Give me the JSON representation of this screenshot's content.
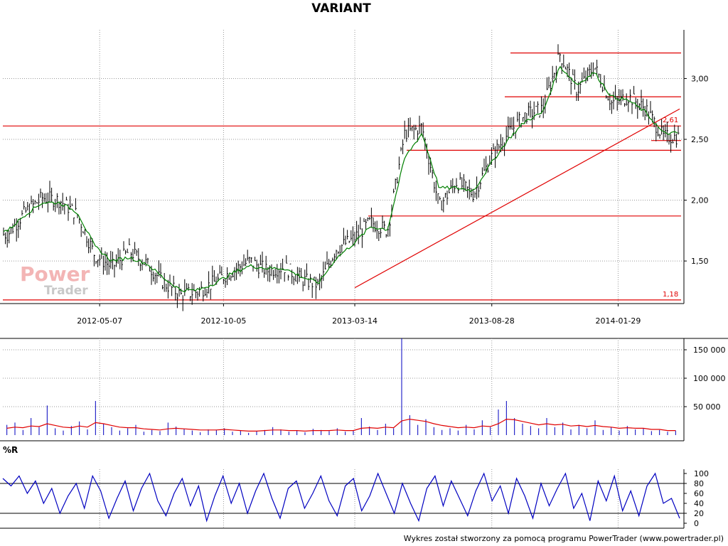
{
  "title": "VARIANT",
  "footer": "Wykres został stworzony za pomocą programu PowerTrader (www.powertrader.pl)",
  "watermark": {
    "line1": "Power",
    "line2": "Trader"
  },
  "colors": {
    "price": "#000000",
    "sma": "#008000",
    "lines": "#e00000",
    "volume": "#0000c0",
    "volume_ma": "#e00000",
    "williams": "#0000c0",
    "grid": "#999999"
  },
  "chart_data": [
    {
      "type": "ohlc",
      "panel": "price",
      "title": "VARIANT",
      "x_tick_labels": [
        "2012-05-07",
        "2012-10-05",
        "2013-03-14",
        "2013-08-28",
        "2014-01-29"
      ],
      "y_tick_labels": [
        "1,50",
        "2,00",
        "2,50",
        "3,00"
      ],
      "ylim": [
        1.15,
        3.4
      ],
      "grid": true,
      "annotations": [
        "2,61",
        "1,18"
      ],
      "series": [
        {
          "name": "Close",
          "dates": [
            "2012-01-16",
            "2012-02-06",
            "2012-02-27",
            "2012-03-19",
            "2012-04-10",
            "2012-05-01",
            "2012-05-22",
            "2012-06-12",
            "2012-07-03",
            "2012-07-24",
            "2012-08-14",
            "2012-09-04",
            "2012-09-25",
            "2012-10-16",
            "2012-11-06",
            "2012-11-27",
            "2012-12-18",
            "2013-01-08",
            "2013-01-29",
            "2013-02-19",
            "2013-03-12",
            "2013-04-02",
            "2013-04-23",
            "2013-05-14",
            "2013-06-04",
            "2013-06-25",
            "2013-07-16",
            "2013-08-06",
            "2013-08-27",
            "2013-09-17",
            "2013-10-08",
            "2013-10-29",
            "2013-11-19",
            "2013-12-10",
            "2013-12-31",
            "2014-01-21",
            "2014-02-11",
            "2014-03-04",
            "2014-03-25"
          ],
          "values": [
            1.72,
            1.9,
            2.02,
            2.0,
            1.88,
            1.55,
            1.45,
            1.58,
            1.48,
            1.32,
            1.22,
            1.25,
            1.33,
            1.42,
            1.5,
            1.42,
            1.45,
            1.35,
            1.3,
            1.6,
            1.68,
            1.82,
            1.75,
            2.55,
            2.6,
            1.95,
            2.15,
            2.05,
            2.35,
            2.55,
            2.7,
            2.75,
            3.2,
            2.9,
            3.1,
            2.8,
            2.85,
            2.75,
            2.52
          ]
        },
        {
          "name": "SMA",
          "values": [
            1.75,
            1.88,
            1.98,
            1.98,
            1.9,
            1.62,
            1.5,
            1.53,
            1.48,
            1.36,
            1.26,
            1.26,
            1.32,
            1.4,
            1.46,
            1.44,
            1.44,
            1.37,
            1.32,
            1.52,
            1.64,
            1.78,
            1.76,
            2.35,
            2.55,
            2.1,
            2.1,
            2.08,
            2.3,
            2.5,
            2.65,
            2.72,
            3.1,
            2.95,
            3.05,
            2.85,
            2.82,
            2.72,
            2.55
          ]
        }
      ],
      "horizontal_lines": [
        1.18,
        1.87,
        2.41,
        2.49,
        2.61,
        2.85,
        3.21
      ],
      "trend_line": {
        "from": [
          "2013-03-14",
          1.28
        ],
        "to": [
          "2014-04-14",
          2.75
        ]
      }
    },
    {
      "type": "bar",
      "panel": "volume",
      "y_tick_labels": [
        "50 000",
        "100 000",
        "150 000"
      ],
      "ylim": [
        0,
        170000
      ],
      "values": [
        18000,
        22000,
        9000,
        30000,
        14000,
        52000,
        12000,
        8000,
        16000,
        24000,
        10000,
        60000,
        20000,
        14000,
        8000,
        12000,
        18000,
        6000,
        9000,
        7000,
        22000,
        15000,
        11000,
        8000,
        5000,
        10000,
        9000,
        12000,
        6000,
        8000,
        4000,
        7000,
        9000,
        14000,
        10000,
        6000,
        8000,
        5000,
        11000,
        9000,
        7000,
        12000,
        6000,
        8000,
        30000,
        15000,
        9000,
        20000,
        12000,
        170000,
        35000,
        18000,
        28000,
        14000,
        9000,
        12000,
        8000,
        18000,
        10000,
        26000,
        14000,
        45000,
        60000,
        30000,
        20000,
        16000,
        12000,
        30000,
        14000,
        22000,
        10000,
        18000,
        12000,
        26000,
        9000,
        14000,
        8000,
        16000,
        10000,
        12000,
        7000,
        9000,
        6000,
        8000
      ],
      "moving_average": [
        12000,
        14000,
        13000,
        16000,
        15000,
        20000,
        17000,
        14000,
        13000,
        16000,
        14000,
        22000,
        20000,
        17000,
        14000,
        13000,
        13000,
        11000,
        10000,
        9000,
        11000,
        12000,
        11000,
        10000,
        9000,
        9000,
        9000,
        10000,
        9000,
        8000,
        7000,
        7000,
        8000,
        9000,
        9000,
        8000,
        8000,
        7000,
        8000,
        8000,
        8000,
        9000,
        8000,
        8000,
        12000,
        13000,
        12000,
        14000,
        13000,
        25000,
        28000,
        26000,
        24000,
        20000,
        17000,
        15000,
        13000,
        14000,
        13000,
        16000,
        15000,
        20000,
        28000,
        27000,
        24000,
        21000,
        18000,
        20000,
        18000,
        19000,
        16000,
        17000,
        15000,
        17000,
        15000,
        14000,
        12000,
        13000,
        12000,
        12000,
        10000,
        10000,
        8000,
        8000
      ]
    },
    {
      "type": "line",
      "panel": "%R",
      "title": "%R",
      "y_tick_labels": [
        "0",
        "20",
        "40",
        "60",
        "80",
        "100"
      ],
      "ylim": [
        0,
        100
      ],
      "reference_lines": [
        20,
        80
      ],
      "values": [
        90,
        75,
        95,
        60,
        85,
        40,
        70,
        20,
        55,
        80,
        30,
        95,
        65,
        10,
        50,
        85,
        25,
        70,
        100,
        45,
        15,
        60,
        90,
        35,
        75,
        5,
        55,
        95,
        40,
        80,
        20,
        65,
        100,
        50,
        10,
        70,
        85,
        30,
        60,
        95,
        45,
        15,
        75,
        90,
        25,
        55,
        100,
        60,
        20,
        80,
        40,
        5,
        70,
        95,
        35,
        85,
        50,
        15,
        65,
        100,
        45,
        75,
        20,
        90,
        55,
        10,
        80,
        35,
        70,
        100,
        30,
        60,
        5,
        85,
        45,
        95,
        25,
        65,
        15,
        75,
        100,
        40,
        50,
        10
      ]
    }
  ]
}
